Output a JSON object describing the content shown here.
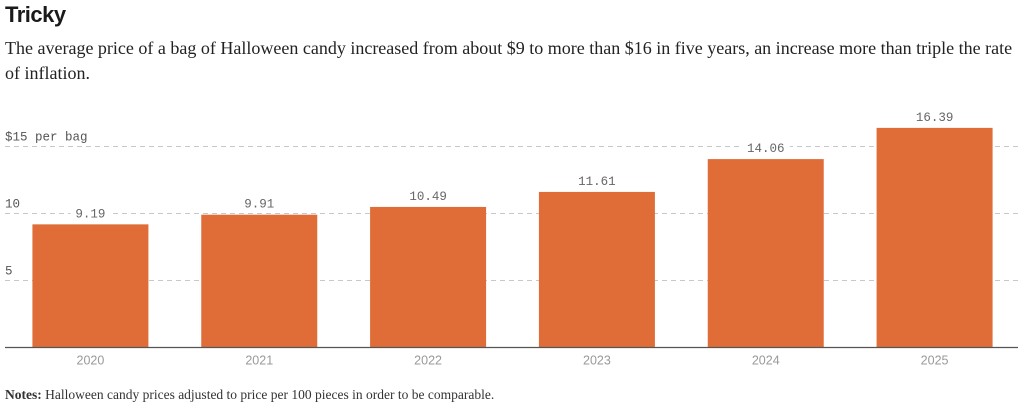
{
  "header": {
    "title": "Tricky",
    "subtitle": "The average price of a bag of Halloween candy increased from about $9 to more than $16 in five years, an increase more than triple the rate of inflation."
  },
  "notes": {
    "label": "Notes:",
    "text": " Halloween candy prices adjusted to price per 100 pieces in order to be comparable."
  },
  "chart_data": {
    "type": "bar",
    "title": "Tricky",
    "xlabel": "",
    "ylabel": "$ per bag",
    "categories": [
      "2020",
      "2021",
      "2022",
      "2023",
      "2024",
      "2025"
    ],
    "values": [
      9.19,
      9.91,
      10.49,
      11.61,
      14.06,
      16.39
    ],
    "value_labels": [
      "9.19",
      "9.91",
      "10.49",
      "11.61",
      "14.06",
      "16.39"
    ],
    "ylim": [
      0,
      17
    ],
    "yticks": [
      5,
      10,
      15
    ],
    "ytick_labels": [
      "5",
      "10",
      "$15 per bag"
    ],
    "grid": true,
    "bar_color": "#e06d38"
  }
}
